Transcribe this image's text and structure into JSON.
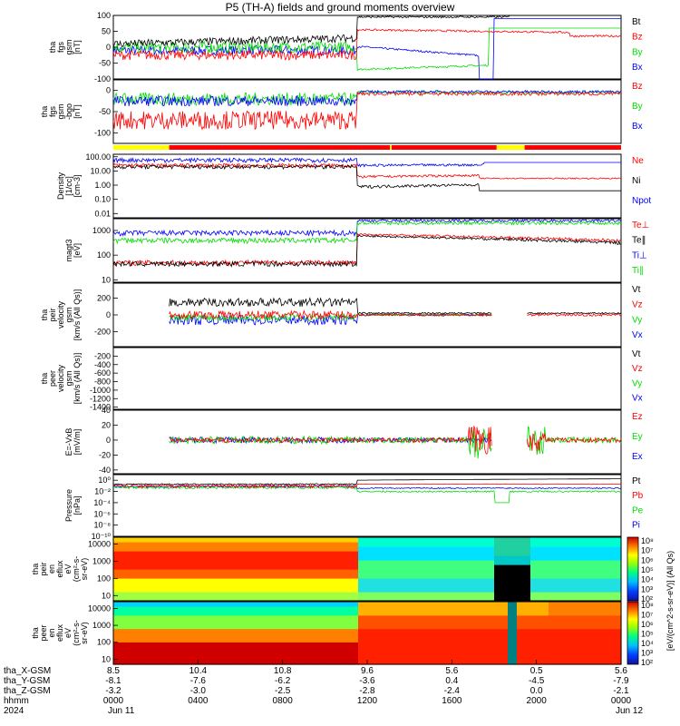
{
  "title": "P5 (TH-A) fields and ground moments overview",
  "colors": {
    "black": "#000000",
    "red": "#ff0000",
    "green": "#00dd00",
    "blue": "#0000ff",
    "yellow": "#ffff00"
  },
  "chart_data": [
    {
      "type": "line",
      "ylabel": [
        "tha",
        "fgs",
        "gsm",
        "[nT]"
      ],
      "ylim": [
        -100,
        100
      ],
      "yticks": [
        "100",
        "50",
        "0",
        "-50",
        "-100"
      ],
      "yvals": [
        100,
        50,
        0,
        -50,
        -100
      ],
      "legend": [
        {
          "name": "Bt",
          "color": "#000000"
        },
        {
          "name": "Bz",
          "color": "#ff0000"
        },
        {
          "name": "By",
          "color": "#00dd00"
        },
        {
          "name": "Bx",
          "color": "#0000ff"
        }
      ]
    },
    {
      "type": "line",
      "ylabel": [
        "tha",
        "fgs",
        "gsm",
        "-bgo",
        "[nT]"
      ],
      "ylim": [
        -125,
        25
      ],
      "yticks": [
        "0",
        "-50",
        "-100"
      ],
      "yvals": [
        0,
        -50,
        -100
      ],
      "legend": [
        {
          "name": "Bz",
          "color": "#ff0000"
        },
        {
          "name": "By",
          "color": "#00dd00"
        },
        {
          "name": "Bx",
          "color": "#0000ff"
        }
      ]
    },
    {
      "type": "line",
      "ylabel": [
        "Density",
        "[1/cc]",
        "[cm-3]"
      ],
      "ylim": "log 0.005-150",
      "yticks": [
        "100.00",
        "10.00",
        "1.00",
        "0.10",
        "0.01"
      ],
      "yvals": [
        100,
        10,
        1,
        0.1,
        0.01
      ],
      "legend": [
        {
          "name": "Ne",
          "color": "#ff0000"
        },
        {
          "name": "Ni",
          "color": "#000000"
        },
        {
          "name": "Npot",
          "color": "#0000ff"
        }
      ]
    },
    {
      "type": "line",
      "ylabel": [
        "magt3",
        "[eV]"
      ],
      "ylim": "log 8-3000",
      "yticks": [
        "1000",
        "100",
        "10"
      ],
      "yvals": [
        1000,
        100,
        10
      ],
      "legend": [
        {
          "name": "Te⊥",
          "color": "#ff0000"
        },
        {
          "name": "Te∥",
          "color": "#000000"
        },
        {
          "name": "Ti⊥",
          "color": "#0000ff"
        },
        {
          "name": "Ti∥",
          "color": "#00dd00"
        }
      ]
    },
    {
      "type": "line",
      "ylabel": [
        "tha",
        "peir",
        "velocity",
        "gsm",
        "[km/s (All Qs)]"
      ],
      "ylim": [
        -380,
        380
      ],
      "yticks": [
        "200",
        "0",
        "-200"
      ],
      "yvals": [
        200,
        0,
        -200
      ],
      "legend": [
        {
          "name": "Vt",
          "color": "#000000"
        },
        {
          "name": "Vz",
          "color": "#ff0000"
        },
        {
          "name": "Vy",
          "color": "#00dd00"
        },
        {
          "name": "Vx",
          "color": "#0000ff"
        }
      ]
    },
    {
      "type": "line",
      "ylabel": [
        "tha",
        "peer",
        "velocity",
        "gsm",
        "[km/s (All Qs)]"
      ],
      "ylim": [
        -1450,
        0
      ],
      "yticks": [
        "-200",
        "-400",
        "-600",
        "-800",
        "-1000",
        "-1200",
        "-1400"
      ],
      "yvals": [
        -200,
        -400,
        -600,
        -800,
        -1000,
        -1200,
        -1400
      ],
      "legend": [
        {
          "name": "Vt",
          "color": "#000000"
        },
        {
          "name": "Vz",
          "color": "#ff0000"
        },
        {
          "name": "Vy",
          "color": "#00dd00"
        },
        {
          "name": "Vx",
          "color": "#0000ff"
        }
      ]
    },
    {
      "type": "line",
      "ylabel": [
        "E=-VxB",
        "[mV/m]"
      ],
      "ylim": [
        -45,
        40
      ],
      "yticks": [
        "40",
        "20",
        "0",
        "-20",
        "-40"
      ],
      "yvals": [
        40,
        20,
        0,
        -20,
        -40
      ],
      "legend": [
        {
          "name": "Ez",
          "color": "#ff0000"
        },
        {
          "name": "Ey",
          "color": "#00dd00"
        },
        {
          "name": "Ex",
          "color": "#0000ff"
        }
      ]
    },
    {
      "type": "line",
      "ylabel": [
        "Pressure",
        "[nPa]"
      ],
      "ylim": "log 1e-10-10",
      "yticks": [
        "10⁰",
        "10⁻²",
        "10⁻⁴",
        "10⁻⁶",
        "10⁻⁸",
        "10⁻¹⁰"
      ],
      "yvals": [
        1,
        0.01,
        0.0001,
        1e-06,
        1e-08,
        1e-10
      ],
      "legend": [
        {
          "name": "Pt",
          "color": "#000000"
        },
        {
          "name": "Pb",
          "color": "#ff0000"
        },
        {
          "name": "Pe",
          "color": "#00dd00"
        },
        {
          "name": "Pi",
          "color": "#0000ff"
        }
      ]
    },
    {
      "type": "heatmap",
      "ylabel": [
        "tha",
        "peir",
        "en",
        "eflux",
        "eV",
        "(cm²-s-",
        "sr-eV)"
      ],
      "ylim": "log 5-25000",
      "yticks": [
        "10000",
        "1000",
        "100",
        "10"
      ],
      "yvals": [
        10000,
        1000,
        100,
        10
      ]
    },
    {
      "type": "heatmap",
      "ylabel": [
        "tha",
        "peer",
        "en",
        "eflux",
        "eV",
        "(cm²-s-",
        "sr-eV)"
      ],
      "ylim": "log 5-25000",
      "yticks": [
        "10000",
        "1000",
        "100",
        "10"
      ],
      "yvals": [
        10000,
        1000,
        100,
        10
      ]
    }
  ],
  "colorbar": {
    "label": "[eV/(cm^2-s-sr-eV)] (All Qs)",
    "upper_ticks": [
      "10⁸",
      "10⁷",
      "10⁶",
      "10⁵",
      "10⁴",
      "10³",
      "10²"
    ],
    "lower_ticks": [
      "10⁸",
      "10⁷",
      "10⁶",
      "10⁵",
      "10⁴",
      "10³",
      "10²"
    ]
  },
  "bottom_axis": {
    "row_labels": [
      "tha_X-GSM",
      "tha_Y-GSM",
      "tha_Z-GSM",
      "hhmm",
      "2024"
    ],
    "columns": [
      [
        "8.5",
        "-8.1",
        "-3.2",
        "0000",
        "Jun 11"
      ],
      [
        "10.4",
        "-7.6",
        "-3.0",
        "0400",
        ""
      ],
      [
        "10.8",
        "-6.2",
        "-2.5",
        "0800",
        ""
      ],
      [
        "9.6",
        "-3.6",
        "-2.8",
        "1200",
        ""
      ],
      [
        "5.6",
        "0.4",
        "-2.4",
        "1600",
        ""
      ],
      [
        "0.5",
        "-4.5",
        "0.0",
        "2000",
        ""
      ],
      [
        "5.6",
        "-7.9",
        "-2.1",
        "0000",
        "Jun 12"
      ]
    ]
  }
}
